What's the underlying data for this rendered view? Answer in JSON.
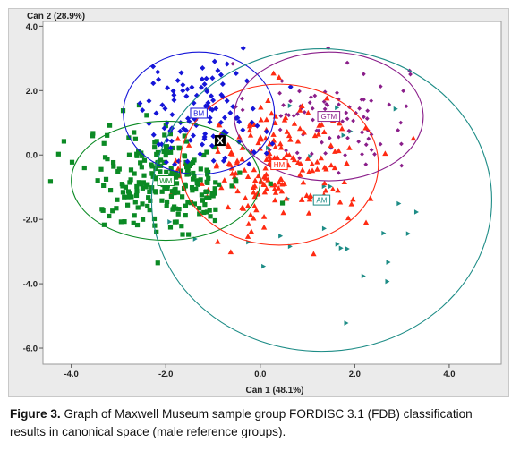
{
  "caption": {
    "figure_label": "Figure 3.",
    "text": "Graph of Maxwell Museum sample group FORDISC 3.1 (FDB) classification results in canonical space (male reference groups)."
  },
  "colors": {
    "BM": "#1515d8",
    "WM": "#0b8a24",
    "HM": "#ff2a12",
    "GTM": "#8a1e8a",
    "AM": "#1d8c86",
    "panel_bg": "#ebebeb",
    "plot_bg": "#ffffff"
  },
  "chart_data": {
    "type": "scatter",
    "title": "",
    "xlabel": "Can 1 (48.1%)",
    "ylabel": "Can 2 (28.9%)",
    "xlim": [
      -4.6,
      5.1
    ],
    "ylim": [
      -6.5,
      4.15
    ],
    "xticks": [
      -4.0,
      -2.0,
      0.0,
      2.0,
      4.0
    ],
    "yticks": [
      4.0,
      2.0,
      0.0,
      -2.0,
      -4.0,
      -6.0
    ],
    "x_tick_labels": [
      "-4.0",
      "-2.0",
      "0.0",
      "2.0",
      "4.0"
    ],
    "y_tick_labels": [
      "4.0",
      "2.0",
      "0.0",
      "-2.0",
      "-4.0",
      "-6.0"
    ],
    "grid": false,
    "groups": [
      {
        "name": "BM",
        "marker": "diamond",
        "centroid": [
          -1.3,
          1.3
        ],
        "ellipse": {
          "rx": 1.6,
          "ry": 1.9
        },
        "n_points": 110
      },
      {
        "name": "WM",
        "marker": "square",
        "centroid": [
          -2.0,
          -0.8
        ],
        "ellipse": {
          "rx": 2.0,
          "ry": 1.85
        },
        "n_points": 240
      },
      {
        "name": "HM",
        "marker": "triangle-up",
        "centroid": [
          0.4,
          -0.3
        ],
        "ellipse": {
          "rx": 2.1,
          "ry": 2.5
        },
        "n_points": 210
      },
      {
        "name": "GTM",
        "marker": "diamond-small",
        "centroid": [
          1.45,
          1.2
        ],
        "ellipse": {
          "rx": 2.0,
          "ry": 2.0
        },
        "n_points": 90
      },
      {
        "name": "AM",
        "marker": "triangle-right",
        "centroid": [
          1.3,
          -1.4
        ],
        "ellipse": {
          "rx": 3.6,
          "ry": 4.7
        },
        "n_points": 28
      }
    ],
    "unknown": {
      "name": "X",
      "point": [
        -0.85,
        0.45
      ]
    }
  }
}
